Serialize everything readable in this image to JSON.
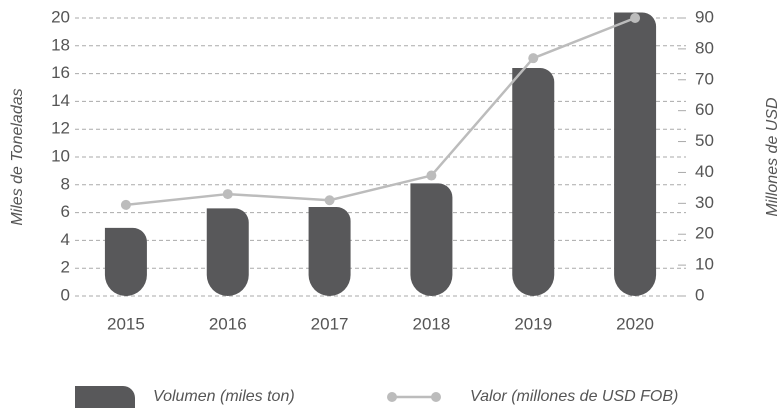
{
  "chart_data": {
    "type": "bar_line",
    "y_label": "Miles de Toneladas",
    "y2_label": "Millones  de USD",
    "categories": [
      "2015",
      "2016",
      "2017",
      "2018",
      "2019",
      "2020"
    ],
    "series": [
      {
        "name": "Volumen (miles ton)",
        "color": "#58585a",
        "type": "bar",
        "values": [
          4.9,
          6.3,
          6.4,
          8.1,
          16.4,
          20.4
        ]
      },
      {
        "name": "Valor (millones de USD FOB)",
        "color": "#bcbcbc",
        "type": "line",
        "axis": "y2",
        "values": [
          29.5,
          33,
          31,
          39,
          77,
          90
        ]
      }
    ],
    "ylim": [
      0,
      20
    ],
    "yticks": [
      0,
      2,
      4,
      6,
      8,
      10,
      12,
      14,
      16,
      18,
      20
    ],
    "y2lim": [
      0,
      90
    ],
    "y2ticks": [
      0,
      10,
      20,
      30,
      40,
      50,
      60,
      70,
      80,
      90
    ],
    "grid": true,
    "legend": "bottom"
  }
}
